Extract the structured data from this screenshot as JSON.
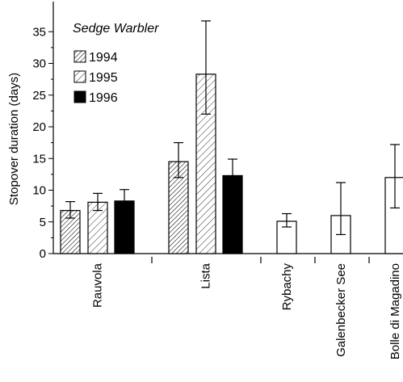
{
  "chart_data": {
    "type": "bar",
    "title": "Sedge Warbler",
    "xlabel": "",
    "ylabel": "Stopover duration (days)",
    "ylim": [
      0,
      37
    ],
    "yticks": [
      0,
      5,
      10,
      15,
      20,
      25,
      30,
      35
    ],
    "legend_position": "top-left",
    "grid": false,
    "series": [
      {
        "name": "1994",
        "pattern": "dense-hatch"
      },
      {
        "name": "1995",
        "pattern": "sparse-hatch"
      },
      {
        "name": "1996",
        "pattern": "solid-black"
      }
    ],
    "groups": [
      {
        "category": "Rauvola",
        "bars": [
          {
            "series": "1994",
            "value": 6.8,
            "err_low": 5.6,
            "err_high": 8.2
          },
          {
            "series": "1995",
            "value": 8.1,
            "err_low": 6.8,
            "err_high": 9.5
          },
          {
            "series": "1996",
            "value": 8.3,
            "err_low": 6.7,
            "err_high": 10.1
          }
        ]
      },
      {
        "category": "Lista",
        "bars": [
          {
            "series": "1994",
            "value": 14.5,
            "err_low": 12.0,
            "err_high": 17.5
          },
          {
            "series": "1995",
            "value": 28.3,
            "err_low": 22.0,
            "err_high": 36.7
          },
          {
            "series": "1996",
            "value": 12.3,
            "err_low": 9.9,
            "err_high": 14.9
          }
        ]
      },
      {
        "category": "Rybachy",
        "bars": [
          {
            "series": "",
            "value": 5.1,
            "err_low": 4.2,
            "err_high": 6.3
          }
        ]
      },
      {
        "category": "Galenbecker See",
        "bars": [
          {
            "series": "",
            "value": 6.0,
            "err_low": 3.0,
            "err_high": 11.2
          }
        ]
      },
      {
        "category": "Bolle di Magadino",
        "bars": [
          {
            "series": "",
            "value": 12.0,
            "err_low": 7.2,
            "err_high": 17.2
          }
        ]
      }
    ]
  }
}
